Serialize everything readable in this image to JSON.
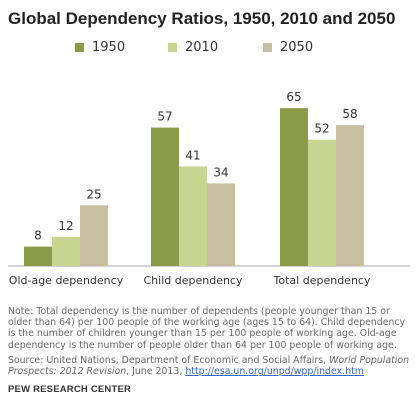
{
  "title": "Global Dependency Ratios, 1950, 2010 and 2050",
  "colors": {
    "1950": "#8b9a47",
    "2010": "#c8d592",
    "2050": "#c8bea0",
    "axis": "#aaaaaa"
  },
  "legend": [
    {
      "label": "1950",
      "color": "#8b9a47"
    },
    {
      "label": "2010",
      "color": "#c8d592"
    },
    {
      "label": "2050",
      "color": "#c8bea0"
    }
  ],
  "chart_data": {
    "type": "bar",
    "title": "Global Dependency Ratios, 1950, 2010 and 2050",
    "categories": [
      "Old-age dependency",
      "Child dependency",
      "Total dependency"
    ],
    "series": [
      {
        "name": "1950",
        "values": [
          8,
          57,
          65
        ]
      },
      {
        "name": "2010",
        "values": [
          12,
          41,
          52
        ]
      },
      {
        "name": "2050",
        "values": [
          25,
          34,
          58
        ]
      }
    ],
    "xlabel": "",
    "ylabel": "",
    "ylim": [
      0,
      70
    ],
    "grid": false,
    "legend_position": "top"
  },
  "note": "Note: Total dependency is the number of dependents (people younger than 15 or older than 64) per 100 people of the working age (ages 15 to 64). Child dependency is the number of children younger than 15 per 100 people of working age. Old-age dependency is the number of people older than 64 per 100 people of working age.",
  "source": {
    "prefix": "Source: United Nations, Department of Economic and Social Affairs, ",
    "publication": "World Population Prospects: 2012 Revision",
    "middle": ", June 2013, ",
    "link": "http://esa.un.org/unpd/wpp/index.htm"
  },
  "brand": "PEW RESEARCH CENTER"
}
